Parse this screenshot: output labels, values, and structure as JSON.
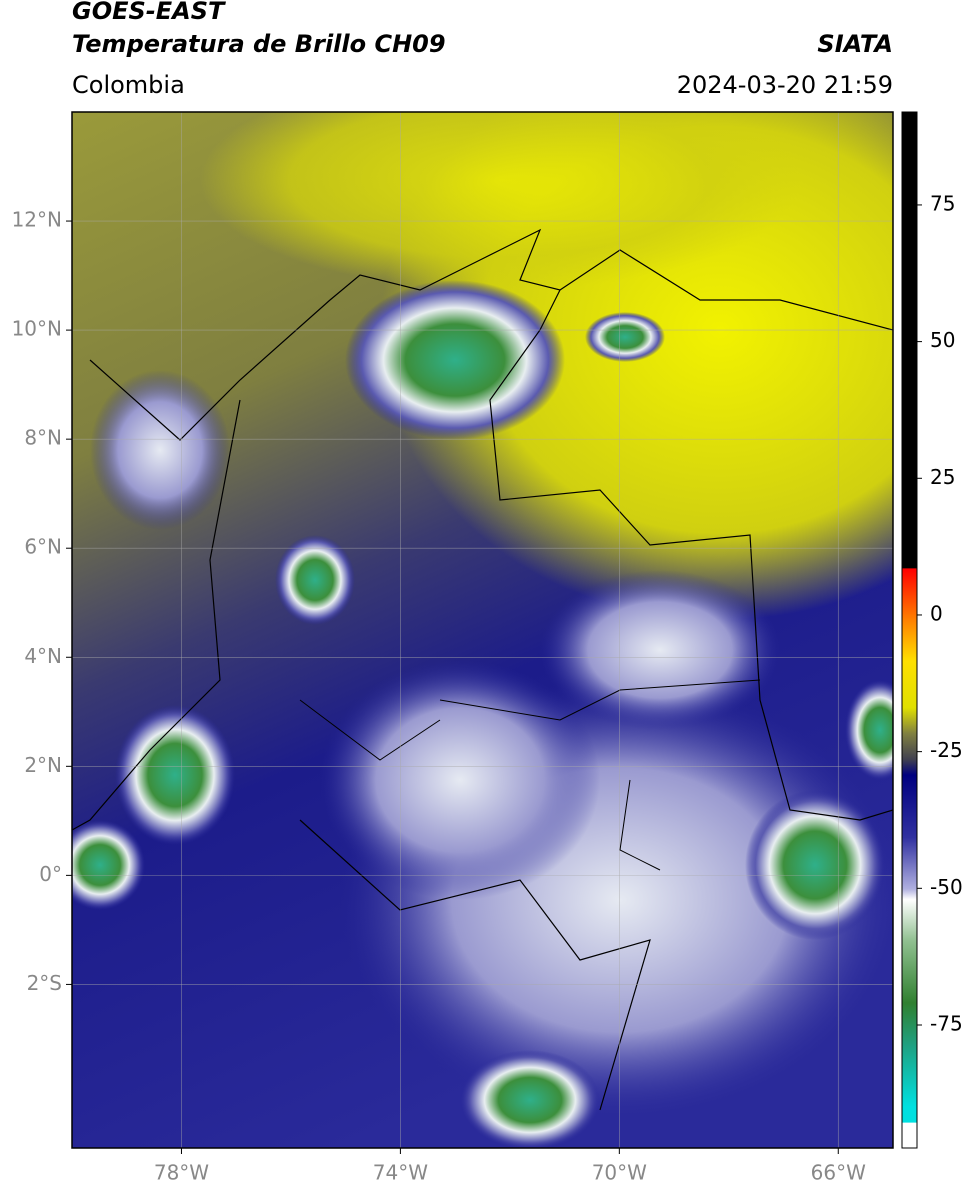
{
  "header": {
    "satellite": "GOES-EAST",
    "product": "Temperatura de Brillo CH09",
    "region": "Colombia",
    "source": "SIATA",
    "datetime": "2024-03-20 21:59"
  },
  "map": {
    "xlim": [
      -80,
      -65
    ],
    "ylim": [
      -5,
      14
    ],
    "xticks": [
      {
        "value": -78,
        "label": "78°W"
      },
      {
        "value": -74,
        "label": "74°W"
      },
      {
        "value": -70,
        "label": "70°W"
      },
      {
        "value": -66,
        "label": "66°W"
      }
    ],
    "yticks": [
      {
        "value": 12,
        "label": "12°N"
      },
      {
        "value": 10,
        "label": "10°N"
      },
      {
        "value": 8,
        "label": "8°N"
      },
      {
        "value": 6,
        "label": "6°N"
      },
      {
        "value": 4,
        "label": "4°N"
      },
      {
        "value": 2,
        "label": "2°N"
      },
      {
        "value": 0,
        "label": "0°"
      },
      {
        "value": -2,
        "label": "2°S"
      }
    ],
    "grid": true
  },
  "colorbar": {
    "lim": [
      -97.5,
      92
    ],
    "ticks": [
      75,
      50,
      25,
      0,
      -25,
      -50,
      -75
    ]
  }
}
